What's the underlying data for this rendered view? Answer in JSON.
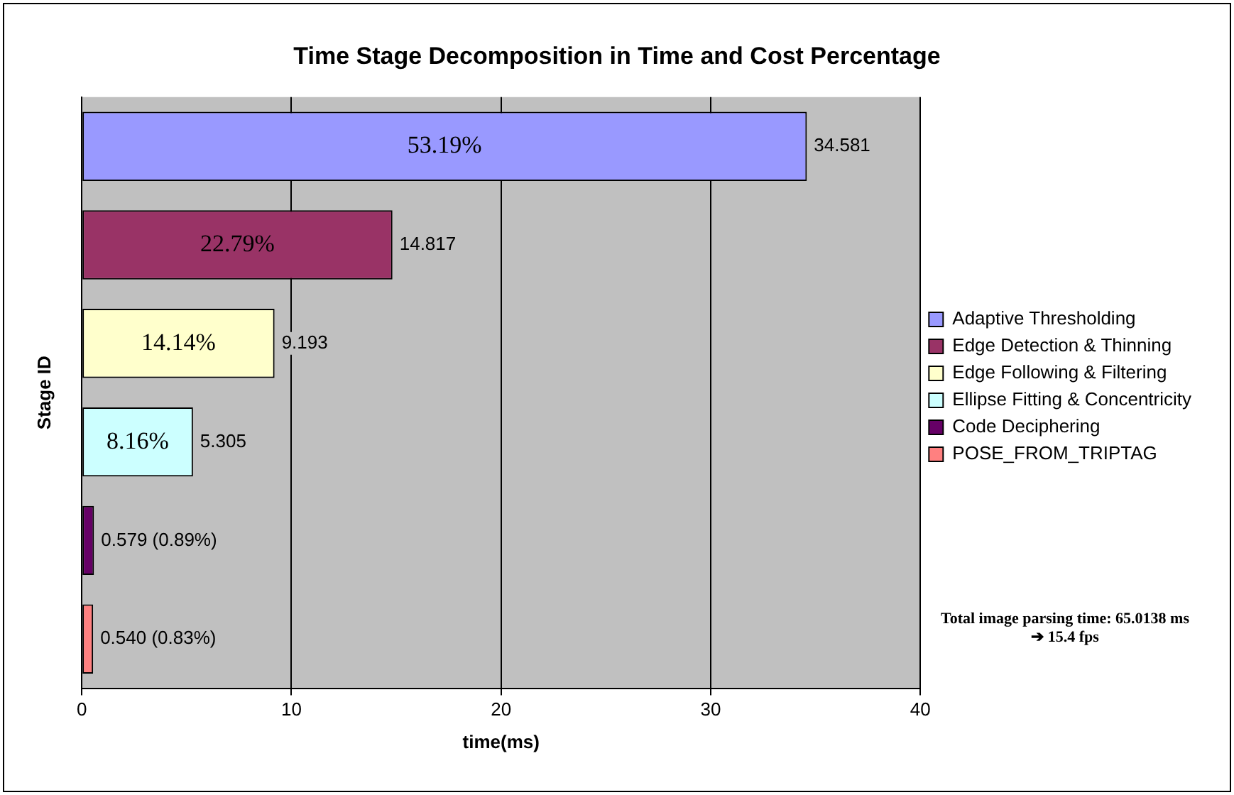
{
  "chart_data": {
    "type": "bar",
    "orientation": "horizontal",
    "title": "Time Stage Decomposition in Time and Cost Percentage",
    "xlabel": "time(ms)",
    "ylabel": "Stage ID",
    "categories": [
      null,
      null,
      null,
      null,
      null,
      null
    ],
    "series": [
      {
        "name": "Adaptive Thresholding",
        "color": "#9999ff",
        "values": [
          34.581,
          null,
          null,
          null,
          null,
          null
        ],
        "value_labels": [
          "34.581",
          null,
          null,
          null,
          null,
          null
        ]
      },
      {
        "name": "Edge Detection & Thinning",
        "color": "#993366",
        "values": [
          null,
          14.817,
          null,
          null,
          null,
          null
        ],
        "value_labels": [
          null,
          "14.817",
          null,
          null,
          null,
          null
        ]
      },
      {
        "name": "Edge Following & Filtering",
        "color": "#ffffcc",
        "values": [
          null,
          null,
          9.193,
          null,
          null,
          null
        ],
        "value_labels": [
          null,
          null,
          "9.193",
          null,
          null,
          null
        ]
      },
      {
        "name": "Ellipse Fitting & Concentricity",
        "color": "#ccffff",
        "values": [
          null,
          null,
          null,
          5.305,
          null,
          null
        ],
        "value_labels": [
          null,
          null,
          null,
          "5.305",
          null,
          null
        ]
      },
      {
        "name": "Code Deciphering",
        "color": "#660066",
        "values": [
          null,
          null,
          null,
          null,
          0.579,
          null
        ],
        "value_labels": [
          null,
          null,
          null,
          null,
          "0.579 (0.89%)",
          null
        ]
      },
      {
        "name": "POSE_FROM_TRIPTAG",
        "color": "#ff8080",
        "values": [
          null,
          null,
          null,
          null,
          null,
          0.54
        ],
        "value_labels": [
          null,
          null,
          null,
          null,
          null,
          "0.540 (0.83%)"
        ]
      }
    ],
    "xlim": [
      0,
      40
    ],
    "xticks": [
      0,
      10,
      20,
      30,
      40
    ],
    "grid": "x",
    "legend": "right",
    "annotations": [
      "53.19%",
      "22.79%",
      "14.14%",
      "8.16%",
      "Total image parsing time: 65.0138 ms ➔ 15.4 fps"
    ]
  }
}
